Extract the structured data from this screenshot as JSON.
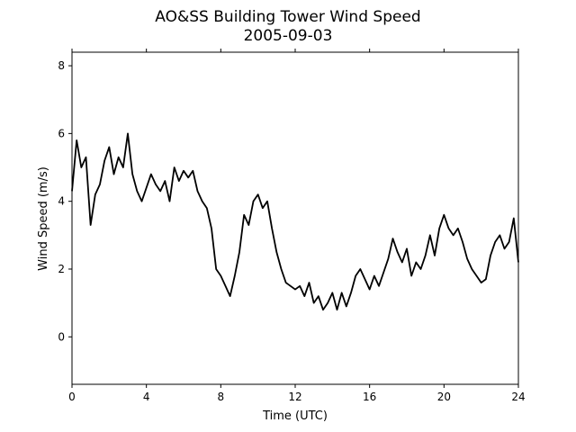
{
  "chart_data": {
    "type": "line",
    "title": "AO&SS Building Tower Wind Speed",
    "subtitle": "2005-09-03",
    "x_label": "Time (UTC)",
    "y_label": "Wind Speed (m/s)",
    "x": [
      0,
      0.25,
      0.5,
      0.75,
      1,
      1.25,
      1.5,
      1.75,
      2,
      2.25,
      2.5,
      2.75,
      3,
      3.25,
      3.5,
      3.75,
      4,
      4.25,
      4.5,
      4.75,
      5,
      5.25,
      5.5,
      5.75,
      6,
      6.25,
      6.5,
      6.75,
      7,
      7.25,
      7.5,
      7.75,
      8,
      8.25,
      8.5,
      8.75,
      9,
      9.25,
      9.5,
      9.75,
      10,
      10.25,
      10.5,
      10.75,
      11,
      11.25,
      11.5,
      11.75,
      12,
      12.25,
      12.5,
      12.75,
      13,
      13.25,
      13.5,
      13.75,
      14,
      14.25,
      14.5,
      14.75,
      15,
      15.25,
      15.5,
      15.75,
      16,
      16.25,
      16.5,
      16.75,
      17,
      17.25,
      17.5,
      17.75,
      18,
      18.25,
      18.5,
      18.75,
      19,
      19.25,
      19.5,
      19.75,
      20,
      20.25,
      20.5,
      20.75,
      21,
      21.25,
      21.5,
      21.75,
      22,
      22.25,
      22.5,
      22.75,
      23,
      23.25,
      23.5,
      23.75,
      24
    ],
    "series": [
      {
        "color": "#000000",
        "values": [
          4.3,
          5.8,
          5.0,
          5.3,
          3.3,
          4.2,
          4.5,
          5.2,
          5.6,
          4.8,
          5.3,
          5.0,
          6.0,
          4.8,
          4.3,
          4.0,
          4.4,
          4.8,
          4.5,
          4.3,
          4.6,
          4.0,
          5.0,
          4.6,
          4.9,
          4.7,
          4.9,
          4.3,
          4.0,
          3.8,
          3.2,
          2.0,
          1.8,
          1.5,
          1.2,
          1.8,
          2.5,
          3.6,
          3.3,
          4.0,
          4.2,
          3.8,
          4.0,
          3.2,
          2.5,
          2.0,
          1.6,
          1.5,
          1.4,
          1.5,
          1.2,
          1.6,
          1.0,
          1.2,
          0.8,
          1.0,
          1.3,
          0.8,
          1.3,
          0.9,
          1.3,
          1.8,
          2.0,
          1.7,
          1.4,
          1.8,
          1.5,
          1.9,
          2.3,
          2.9,
          2.5,
          2.2,
          2.6,
          1.8,
          2.2,
          2.0,
          2.4,
          3.0,
          2.4,
          3.2,
          3.6,
          3.2,
          3.0,
          3.2,
          2.8,
          2.3,
          2.0,
          1.8,
          1.6,
          1.7,
          2.4,
          2.8,
          3.0,
          2.6,
          2.8,
          3.5,
          2.2
        ]
      }
    ],
    "xlim": [
      0,
      24
    ],
    "xticks": [
      0,
      4,
      8,
      12,
      16,
      20,
      24
    ],
    "ylim": [
      -1.4,
      8.4
    ],
    "yticks": [
      0,
      2,
      4,
      6,
      8
    ]
  }
}
